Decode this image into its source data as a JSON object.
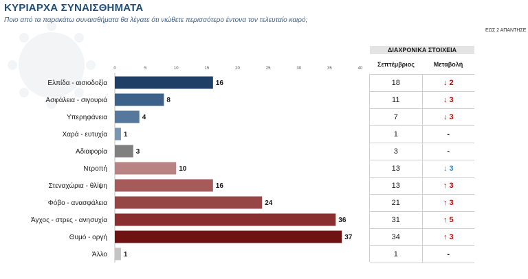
{
  "header": {
    "title": "ΚΥΡΙΑΡΧΑ ΣΥΝΑΙΣΘΗΜΑΤΑ",
    "subtitle": "Ποιο από τα παρακάτω συναισθήματα θα λέγατε ότι νιώθετε περισσότερο έντονα τον τελευταίο καιρό;",
    "note": "ΕΩΣ 2 ΑΠΑΝΤΗΣΕ"
  },
  "history": {
    "header": "ΔΙΑΧΡΟΝΙΚΑ ΣΤΟΙΧΕΙΑ",
    "col_september": "Σεπτέμβριος",
    "col_change": "Μεταβολή",
    "rows": [
      {
        "september": "18",
        "change": "↓ 2",
        "color": "#c00000"
      },
      {
        "september": "11",
        "change": "↓ 3",
        "color": "#c00000"
      },
      {
        "september": "7",
        "change": "↓ 3",
        "color": "#c00000"
      },
      {
        "september": "1",
        "change": "-",
        "color": "#1a1a1a"
      },
      {
        "september": "3",
        "change": "-",
        "color": "#1a1a1a"
      },
      {
        "september": "13",
        "change": "↓ 3",
        "color": "#2e86c1"
      },
      {
        "september": "13",
        "change": "↑ 3",
        "color": "#c00000"
      },
      {
        "september": "21",
        "change": "↑ 3",
        "color": "#c00000"
      },
      {
        "september": "31",
        "change": "↑ 5",
        "color": "#c00000"
      },
      {
        "september": "34",
        "change": "↑ 3",
        "color": "#c00000"
      },
      {
        "september": "1",
        "change": "-",
        "color": "#1a1a1a"
      }
    ]
  },
  "chart_data": {
    "type": "bar",
    "orientation": "horizontal",
    "categories": [
      "Ελπίδα - αισιοδοξία",
      "Ασφάλεια - σιγουριά",
      "Υπερηφάνεια",
      "Χαρά - ευτυχία",
      "Αδιαφορία",
      "Ντροπή",
      "Στεναχώρια - θλίψη",
      "Φόβο - ανασφάλεια",
      "Άγχος - στρες - ανησυχία",
      "Θυμό - οργή",
      "Άλλο"
    ],
    "values": [
      16,
      8,
      4,
      1,
      3,
      10,
      16,
      24,
      36,
      37,
      1
    ],
    "colors": [
      "#1f3f66",
      "#3d6289",
      "#57789d",
      "#7b96b3",
      "#808080",
      "#b98383",
      "#a65a5a",
      "#974646",
      "#8a2f2f",
      "#6e1212",
      "#c4c4c4"
    ],
    "xlim": [
      0,
      40
    ],
    "xticks": [
      0,
      5,
      10,
      15,
      20,
      25,
      30,
      35,
      40
    ],
    "grid": false
  }
}
